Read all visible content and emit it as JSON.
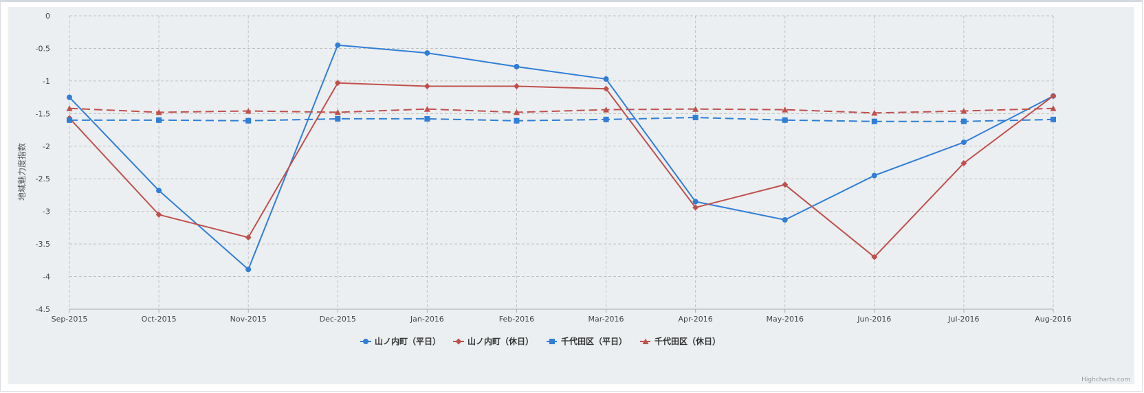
{
  "chart_data": {
    "type": "line",
    "title": "",
    "xlabel": "",
    "ylabel": "地域魅力度指数",
    "ylim": [
      -4.5,
      0
    ],
    "yticks": [
      0,
      -0.5,
      -1,
      -1.5,
      -2,
      -2.5,
      -3,
      -3.5,
      -4,
      -4.5
    ],
    "ytick_labels": [
      "0",
      "-0.5",
      "-1",
      "-1.5",
      "-2",
      "-2.5",
      "-3",
      "-3.5",
      "-4",
      "-4.5"
    ],
    "categories": [
      "Sep-2015",
      "Oct-2015",
      "Nov-2015",
      "Dec-2015",
      "Jan-2016",
      "Feb-2016",
      "Mar-2016",
      "Apr-2016",
      "May-2016",
      "Jun-2016",
      "Jul-2016",
      "Aug-2016"
    ],
    "grid": true,
    "legend": "bottom-center",
    "series": [
      {
        "name": "山ノ内町（平日）",
        "color": "#2f7ed8",
        "marker": "circle",
        "dash": "solid",
        "values": [
          -1.25,
          -2.68,
          -3.89,
          -0.45,
          -0.57,
          -0.78,
          -0.97,
          -2.85,
          -3.13,
          -2.45,
          -1.94,
          -1.23
        ]
      },
      {
        "name": "山ノ内町（休日）",
        "color": "#c0504d",
        "marker": "diamond",
        "dash": "solid",
        "values": [
          -1.57,
          -3.05,
          -3.4,
          -1.03,
          -1.08,
          -1.08,
          -1.12,
          -2.94,
          -2.59,
          -3.7,
          -2.26,
          -1.23
        ]
      },
      {
        "name": "千代田区（平日）",
        "color": "#2f7ed8",
        "marker": "square",
        "dash": "dash",
        "values": [
          -1.6,
          -1.6,
          -1.61,
          -1.58,
          -1.58,
          -1.61,
          -1.59,
          -1.56,
          -1.6,
          -1.62,
          -1.62,
          -1.59
        ]
      },
      {
        "name": "千代田区（休日）",
        "color": "#c0504d",
        "marker": "triangle",
        "dash": "dash",
        "values": [
          -1.42,
          -1.48,
          -1.46,
          -1.48,
          -1.43,
          -1.48,
          -1.44,
          -1.43,
          -1.44,
          -1.49,
          -1.46,
          -1.42
        ]
      }
    ],
    "credits": "Highcharts.com"
  }
}
